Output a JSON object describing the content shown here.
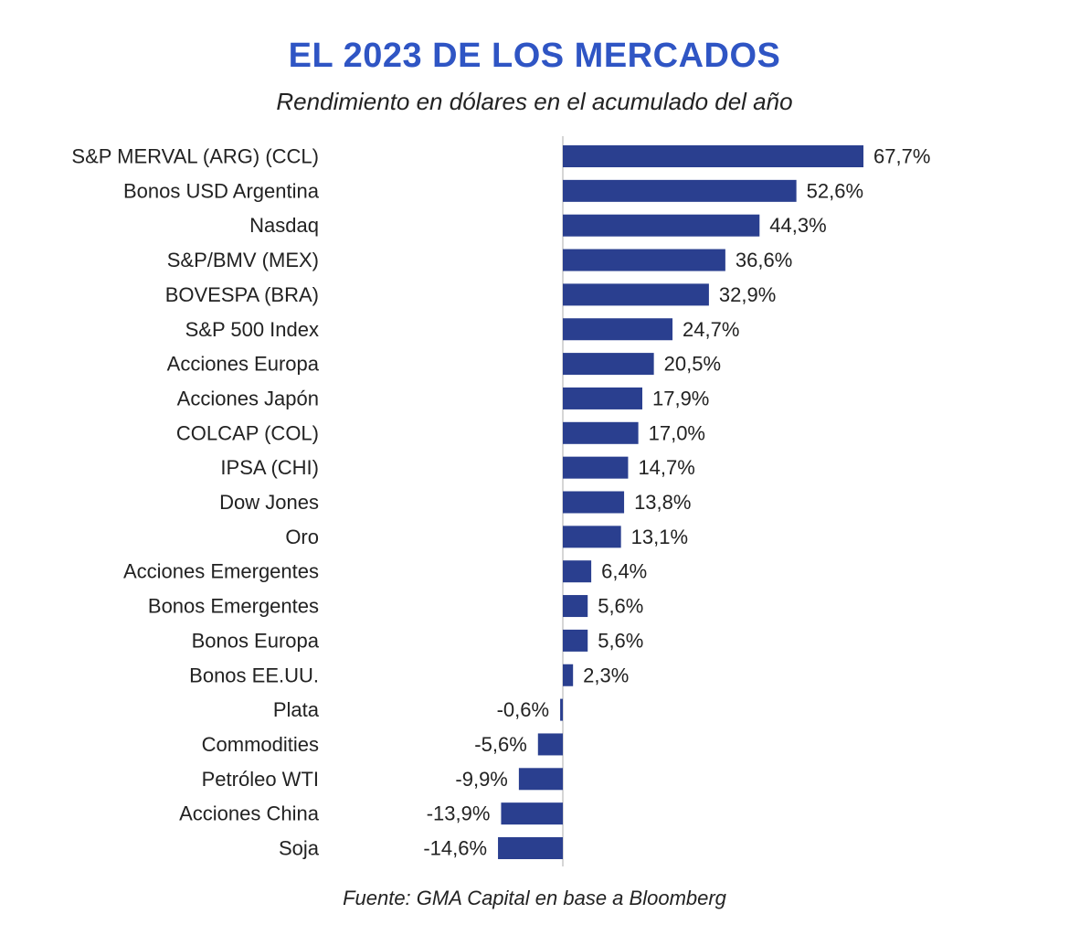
{
  "header": {
    "title": "EL 2023 DE LOS MERCADOS",
    "subtitle": "Rendimiento en dólares en el acumulado del año"
  },
  "footer": {
    "source": "Fuente: GMA Capital en base a Bloomberg"
  },
  "colors": {
    "title": "#2f55c4",
    "bar": "#2a3f8f",
    "text": "#222222",
    "axis": "#bbbbbb"
  },
  "chart_data": {
    "type": "bar",
    "orientation": "horizontal",
    "title": "EL 2023 DE LOS MERCADOS",
    "subtitle": "Rendimiento en dólares en el acumulado del año",
    "xlabel": "",
    "ylabel": "",
    "unit": "%",
    "grid": false,
    "legend": "none",
    "categories": [
      "S&P MERVAL (ARG) (CCL)",
      "Bonos USD Argentina",
      "Nasdaq",
      "S&P/BMV (MEX)",
      "BOVESPA (BRA)",
      "S&P 500 Index",
      "Acciones Europa",
      "Acciones Japón",
      "COLCAP (COL)",
      "IPSA (CHI)",
      "Dow Jones",
      "Oro",
      "Acciones Emergentes",
      "Bonos Emergentes",
      "Bonos Europa",
      "Bonos EE.UU.",
      "Plata",
      "Commodities",
      "Petróleo WTI",
      "Acciones China",
      "Soja"
    ],
    "values": [
      67.7,
      52.6,
      44.3,
      36.6,
      32.9,
      24.7,
      20.5,
      17.9,
      17.0,
      14.7,
      13.8,
      13.1,
      6.4,
      5.6,
      5.6,
      2.3,
      -0.6,
      -5.6,
      -9.9,
      -13.9,
      -14.6
    ],
    "value_labels": [
      "67,7%",
      "52,6%",
      "44,3%",
      "36,6%",
      "32,9%",
      "24,7%",
      "20,5%",
      "17,9%",
      "17,0%",
      "14,7%",
      "13,8%",
      "13,1%",
      "6,4%",
      "5,6%",
      "5,6%",
      "2,3%",
      "-0,6%",
      "-5,6%",
      "-9,9%",
      "-13,9%",
      "-14,6%"
    ]
  }
}
